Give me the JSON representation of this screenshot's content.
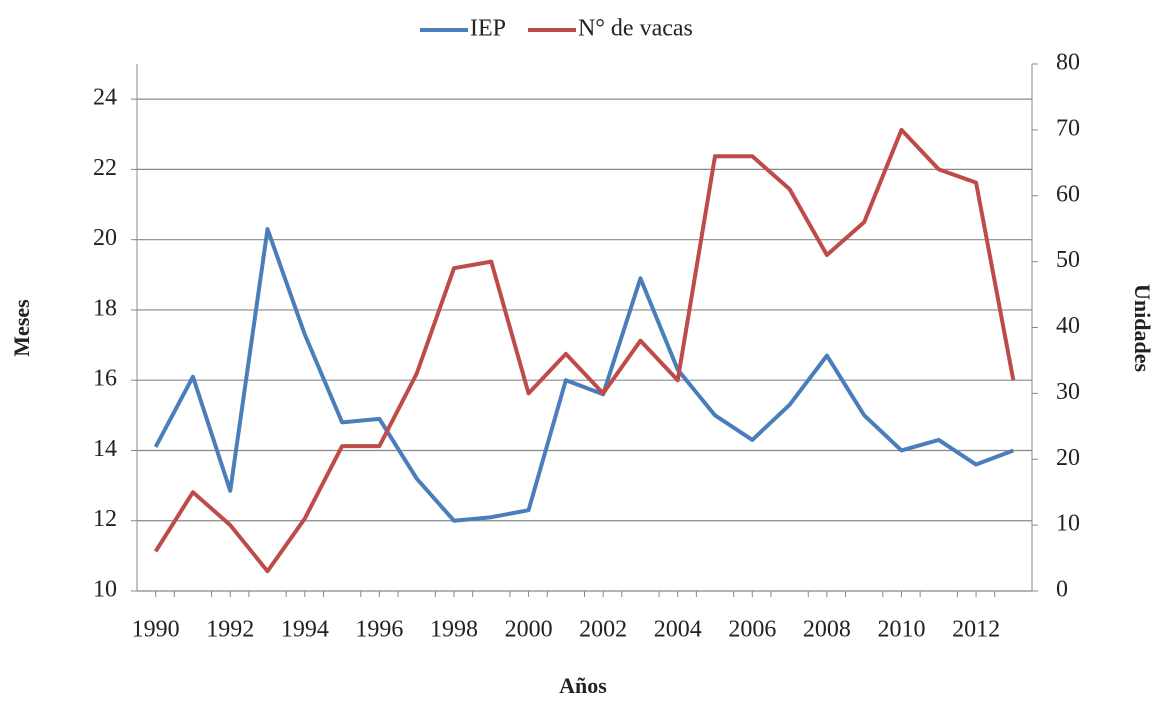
{
  "chart_data": {
    "type": "line",
    "x_label": "Años",
    "y_label": "Meses",
    "y2_label": "Unidades",
    "x": [
      1990,
      1991,
      1992,
      1993,
      1994,
      1995,
      1996,
      1997,
      1998,
      1999,
      2000,
      2001,
      2002,
      2003,
      2004,
      2005,
      2006,
      2007,
      2008,
      2009,
      2010,
      2011,
      2012,
      2013
    ],
    "xlim": [
      1989.5,
      2013.5
    ],
    "xticks": [
      1990,
      1992,
      1994,
      1996,
      1998,
      2000,
      2002,
      2004,
      2006,
      2008,
      2010,
      2012
    ],
    "ylim": [
      10,
      25
    ],
    "yticks": [
      10,
      12,
      14,
      16,
      18,
      20,
      22,
      24
    ],
    "y2lim": [
      0,
      80
    ],
    "y2ticks": [
      0,
      10,
      20,
      30,
      40,
      50,
      60,
      70,
      80
    ],
    "grid": true,
    "legend": "top",
    "series": [
      {
        "name": "IEP",
        "color": "#4a7ebb",
        "values": [
          14.1,
          16.1,
          12.85,
          20.3,
          17.3,
          14.8,
          14.9,
          13.2,
          12.0,
          12.1,
          12.3,
          16.0,
          15.6,
          18.9,
          16.3,
          15.0,
          14.3,
          15.3,
          16.7,
          15.0,
          14.0,
          14.3,
          13.6,
          14.0
        ]
      },
      {
        "name": "N° de vacas",
        "color": "#be4b48",
        "axis": "y2",
        "values": [
          6,
          15,
          10,
          3,
          11,
          22,
          22,
          33,
          49,
          50,
          30,
          36,
          30,
          38,
          32,
          66,
          66,
          61,
          51,
          56,
          70,
          64,
          62,
          32
        ]
      }
    ]
  }
}
